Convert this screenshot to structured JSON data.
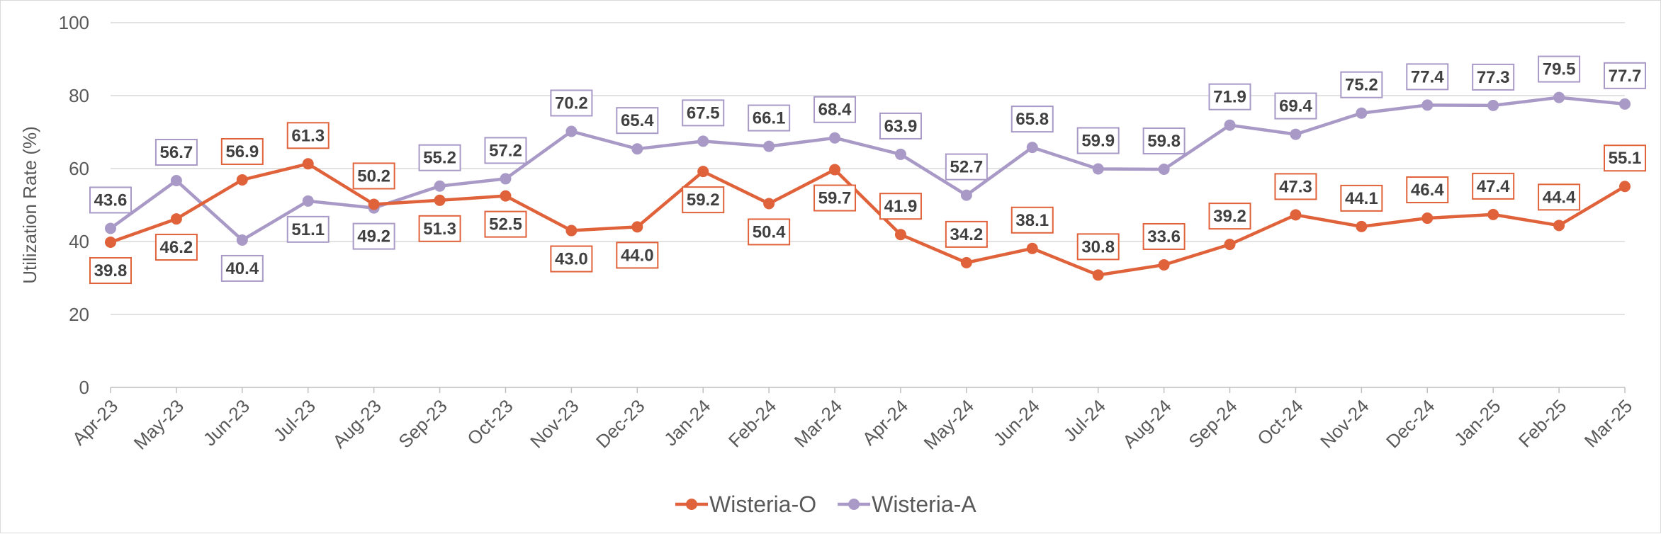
{
  "chart_data": {
    "type": "line",
    "title": "",
    "xlabel": "",
    "ylabel": "Utilization Rate (%)",
    "ylim": [
      0,
      100
    ],
    "yticks": [
      0,
      20,
      40,
      60,
      80,
      100
    ],
    "grid": true,
    "legend_position": "bottom",
    "categories": [
      "Apr-23",
      "May-23",
      "Jun-23",
      "Jul-23",
      "Aug-23",
      "Sep-23",
      "Oct-23",
      "Nov-23",
      "Dec-23",
      "Jan-24",
      "Feb-24",
      "Mar-24",
      "Apr-24",
      "May-24",
      "Jun-24",
      "Jul-24",
      "Aug-24",
      "Sep-24",
      "Oct-24",
      "Nov-24",
      "Dec-24",
      "Jan-25",
      "Feb-25",
      "Mar-25"
    ],
    "series": [
      {
        "name": "Wisteria-O",
        "color": "#E0623A",
        "values": [
          39.8,
          46.2,
          56.9,
          61.3,
          50.2,
          51.3,
          52.5,
          43.0,
          44.0,
          59.2,
          50.4,
          59.7,
          41.9,
          34.2,
          38.1,
          30.8,
          33.6,
          39.2,
          47.3,
          44.1,
          46.4,
          47.4,
          44.4,
          55.1
        ],
        "labels": [
          "39.8",
          "46.2",
          "56.9",
          "61.3",
          "50.2",
          "51.3",
          "52.5",
          "43.0",
          "44.0",
          "59.2",
          "50.4",
          "59.7",
          "41.9",
          "34.2",
          "38.1",
          "30.8",
          "33.6",
          "39.2",
          "47.3",
          "44.1",
          "46.4",
          "47.4",
          "44.4",
          "55.1"
        ],
        "label_positions": [
          "below",
          "below",
          "above",
          "above",
          "above",
          "below",
          "below",
          "below",
          "below",
          "below",
          "below",
          "below",
          "above",
          "above",
          "above",
          "above",
          "above",
          "above",
          "above",
          "above",
          "above",
          "above",
          "above",
          "above"
        ]
      },
      {
        "name": "Wisteria-A",
        "color": "#A899C6",
        "values": [
          43.6,
          56.7,
          40.4,
          51.1,
          49.2,
          55.2,
          57.2,
          70.2,
          65.4,
          67.5,
          66.1,
          68.4,
          63.9,
          52.7,
          65.8,
          59.9,
          59.8,
          71.9,
          69.4,
          75.2,
          77.4,
          77.3,
          79.5,
          77.7
        ],
        "labels": [
          "43.6",
          "56.7",
          "40.4",
          "51.1",
          "49.2",
          "55.2",
          "57.2",
          "70.2",
          "65.4",
          "67.5",
          "66.1",
          "68.4",
          "63.9",
          "52.7",
          "65.8",
          "59.9",
          "59.8",
          "71.9",
          "69.4",
          "75.2",
          "77.4",
          "77.3",
          "79.5",
          "77.7"
        ],
        "label_positions": [
          "above",
          "above",
          "below",
          "below",
          "below",
          "above",
          "above",
          "above",
          "above",
          "above",
          "above",
          "above",
          "above",
          "above",
          "above",
          "above",
          "above",
          "above",
          "above",
          "above",
          "above",
          "above",
          "above",
          "above"
        ]
      }
    ]
  }
}
